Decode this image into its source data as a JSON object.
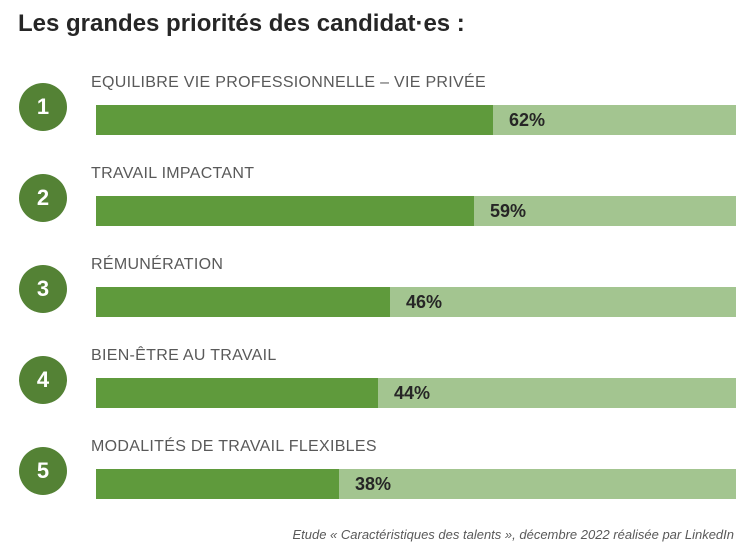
{
  "title": "Les grandes priorités des candidat·es :",
  "source": "Etude « Caractéristiques des talents », décembre 2022 réalisée par LinkedIn",
  "colors": {
    "bar_fill": "#5f9a3c",
    "bar_track": "#a3c590",
    "circle": "#548235"
  },
  "chart_data": {
    "type": "bar",
    "orientation": "horizontal",
    "title": "Les grandes priorités des candidat·es :",
    "xlim": [
      0,
      100
    ],
    "unit": "%",
    "grid": false,
    "categories": [
      "EQUILIBRE VIE PROFESSIONNELLE – VIE PRIVÉE",
      "TRAVAIL IMPACTANT",
      "RÉMUNÉRATION",
      "BIEN-ÊTRE AU TRAVAIL",
      "MODALITÉS DE TRAVAIL FLEXIBLES"
    ],
    "ranks": [
      "1",
      "2",
      "3",
      "4",
      "5"
    ],
    "values": [
      62,
      59,
      46,
      44,
      38
    ],
    "value_labels": [
      "62%",
      "59%",
      "46%",
      "44%",
      "38%"
    ]
  }
}
